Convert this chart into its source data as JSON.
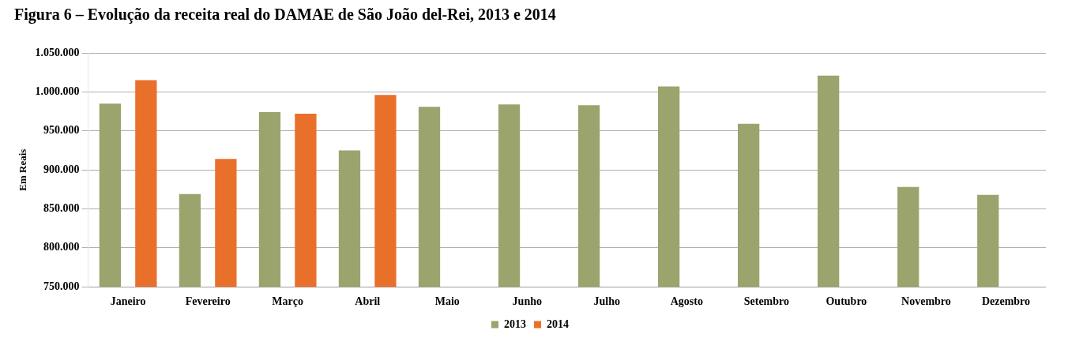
{
  "chart_data": {
    "type": "bar",
    "title": "Figura 6 – Evolução da receita real do DAMAE de São João del-Rei, 2013 e 2014",
    "ylabel": "Em Reais",
    "categories": [
      "Janeiro",
      "Fevereiro",
      "Março",
      "Abril",
      "Maio",
      "Junho",
      "Julho",
      "Agosto",
      "Setembro",
      "Outubro",
      "Novembro",
      "Dezembro"
    ],
    "series": [
      {
        "name": "2013",
        "color": "#9ba46c",
        "values": [
          985000,
          869000,
          974000,
          925000,
          981000,
          984000,
          983000,
          1007000,
          959000,
          1021000,
          878000,
          868000
        ]
      },
      {
        "name": "2014",
        "color": "#e8702a",
        "values": [
          1015000,
          914000,
          972000,
          996000,
          null,
          null,
          null,
          null,
          null,
          null,
          null,
          null
        ]
      }
    ],
    "ylim": [
      750000,
      1050000
    ],
    "yticks": [
      {
        "value": 750000,
        "label": "750.000"
      },
      {
        "value": 800000,
        "label": "800.000"
      },
      {
        "value": 850000,
        "label": "850.000"
      },
      {
        "value": 900000,
        "label": "900.000"
      },
      {
        "value": 950000,
        "label": "950.000"
      },
      {
        "value": 1000000,
        "label": "1.000.000"
      },
      {
        "value": 1050000,
        "label": "1.050.000"
      }
    ],
    "grid": "y",
    "legend": "bottom"
  }
}
